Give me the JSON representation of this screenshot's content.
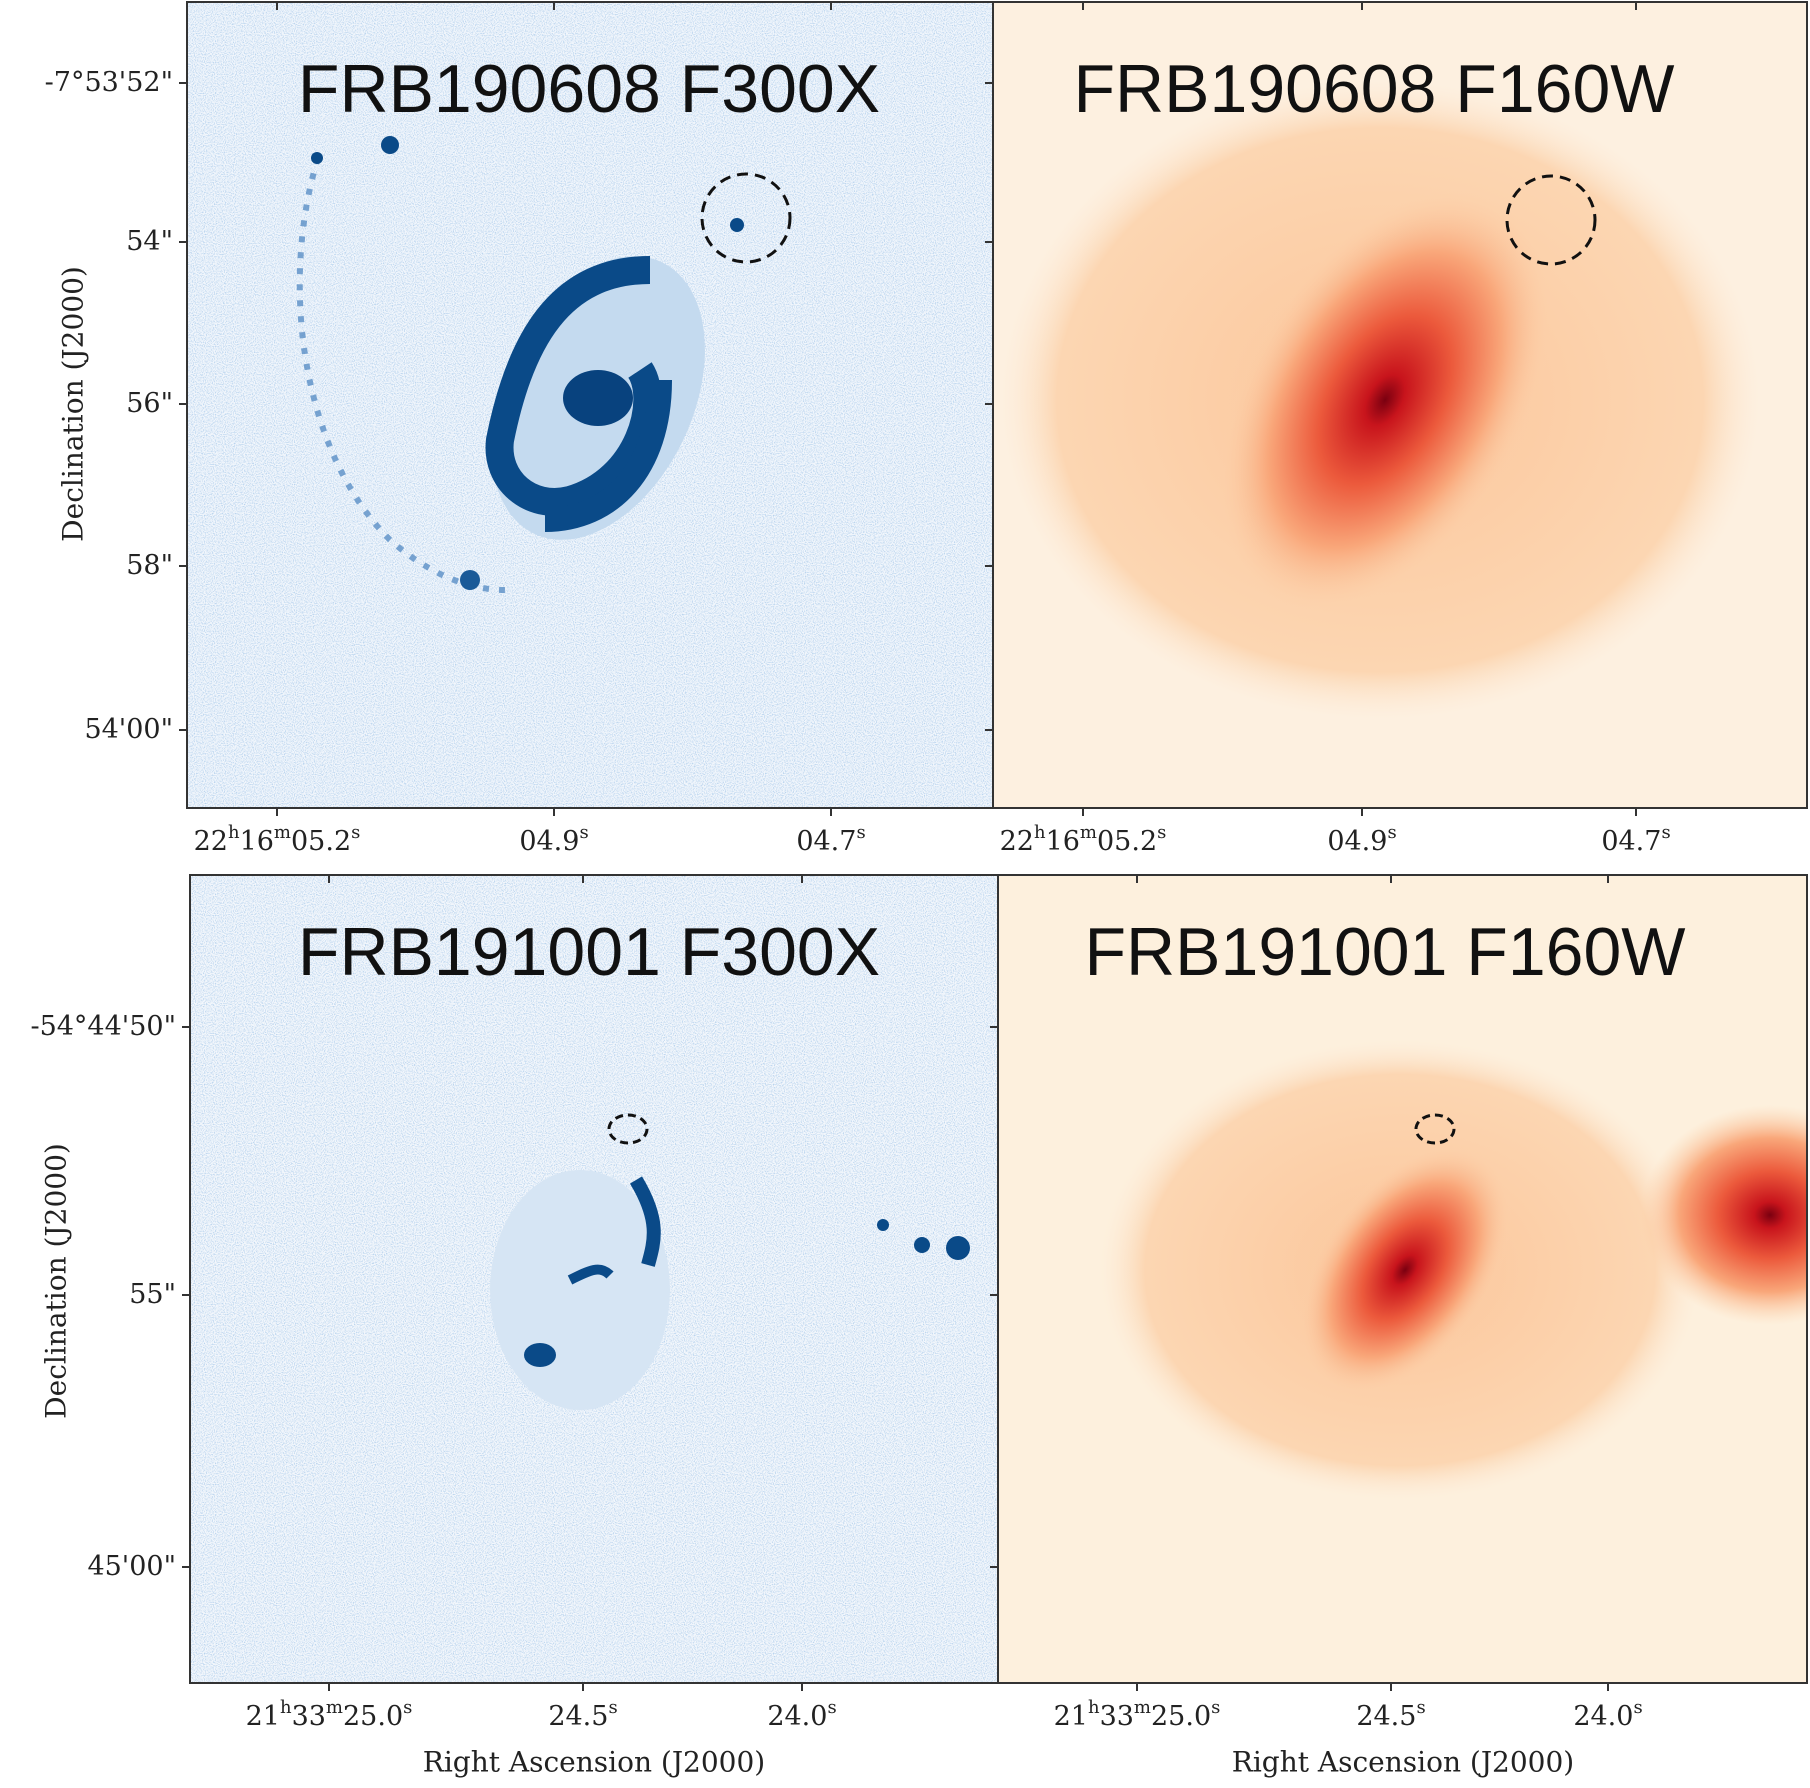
{
  "panels": [
    {
      "title": "FRB190608 F300X",
      "ylabel": "Declination (J2000)",
      "yticks": [
        {
          "parts": [
            "-7°53'52\""
          ]
        },
        {
          "parts": [
            "54\""
          ]
        },
        {
          "parts": [
            "56\""
          ]
        },
        {
          "parts": [
            "58\""
          ]
        },
        {
          "parts": [
            "54'00\""
          ]
        }
      ],
      "xticks": [
        {
          "parts": [
            "22",
            "h",
            "16",
            "m",
            "05.2",
            "s"
          ]
        },
        {
          "parts": [
            "04.9",
            "s"
          ]
        },
        {
          "parts": [
            "04.7",
            "s"
          ]
        }
      ]
    },
    {
      "title": "FRB190608 F160W",
      "xticks": [
        {
          "parts": [
            "22",
            "h",
            "16",
            "m",
            "05.2",
            "s"
          ]
        },
        {
          "parts": [
            "04.9",
            "s"
          ]
        },
        {
          "parts": [
            "04.7",
            "s"
          ]
        }
      ]
    },
    {
      "title": "FRB191001 F300X",
      "ylabel": "Declination (J2000)",
      "xlabel": "Right Ascension (J2000)",
      "yticks": [
        {
          "parts": [
            "-54°44'50\""
          ]
        },
        {
          "parts": [
            "55\""
          ]
        },
        {
          "parts": [
            "45'00\""
          ]
        }
      ],
      "xticks": [
        {
          "parts": [
            "21",
            "h",
            "33",
            "m",
            "25.0",
            "s"
          ]
        },
        {
          "parts": [
            "24.5",
            "s"
          ]
        },
        {
          "parts": [
            "24.0",
            "s"
          ]
        }
      ]
    },
    {
      "title": "FRB191001 F160W",
      "xlabel": "Right Ascension (J2000)",
      "xticks": [
        {
          "parts": [
            "21",
            "h",
            "33",
            "m",
            "25.0",
            "s"
          ]
        },
        {
          "parts": [
            "24.5",
            "s"
          ]
        },
        {
          "parts": [
            "24.0",
            "s"
          ]
        }
      ]
    }
  ]
}
